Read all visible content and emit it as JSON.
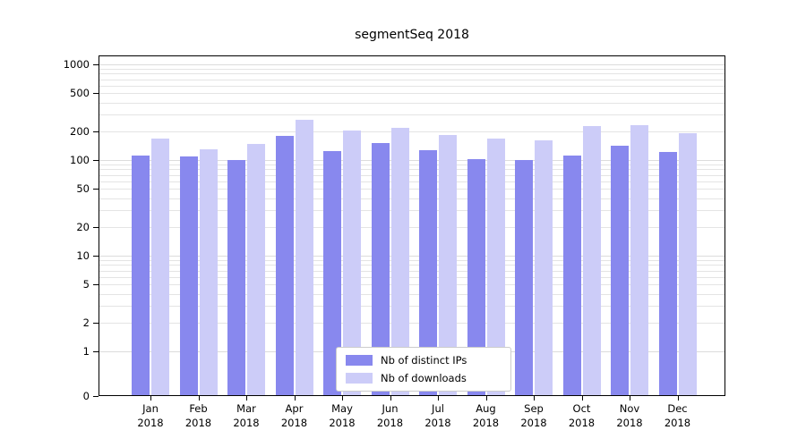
{
  "chart_data": {
    "type": "bar",
    "title": "segmentSeq 2018",
    "categories": [
      "Jan",
      "Feb",
      "Mar",
      "Apr",
      "May",
      "Jun",
      "Jul",
      "Aug",
      "Sep",
      "Oct",
      "Nov",
      "Dec"
    ],
    "year_label": "2018",
    "series": [
      {
        "name": "Nb of distinct IPs",
        "color": "#8888ee",
        "values": [
          112,
          110,
          101,
          178,
          125,
          150,
          126,
          102,
          100,
          112,
          140,
          121
        ]
      },
      {
        "name": "Nb of downloads",
        "color": "#ccccf8",
        "values": [
          168,
          131,
          149,
          265,
          203,
          218,
          182,
          167,
          160,
          228,
          232,
          190
        ]
      }
    ],
    "yticks": [
      0,
      1,
      2,
      5,
      10,
      20,
      50,
      100,
      200,
      500,
      1000
    ],
    "yscale": "log",
    "ylim": [
      0,
      1000
    ],
    "grid": true,
    "legend_position": "bottom-center-inside",
    "gridline_color": "#e4e4e4",
    "axis_color": "#000000",
    "background_color": "#ffffff"
  }
}
